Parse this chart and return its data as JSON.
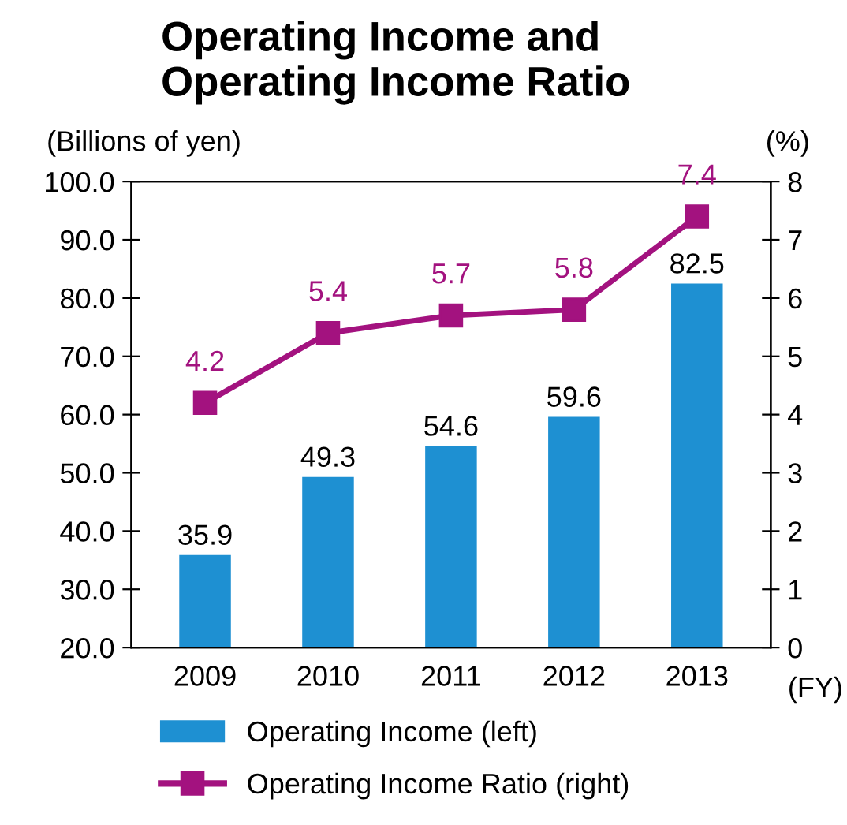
{
  "chart_data": {
    "type": "bar",
    "title": "Operating Income and\nOperating Income Ratio",
    "xlabel": "(FY)",
    "ylabel": "(Billions of yen)",
    "y2label": "(%)",
    "categories": [
      "2009",
      "2010",
      "2011",
      "2012",
      "2013"
    ],
    "series": [
      {
        "name": "Operating Income (left)",
        "color": "#1e90d2",
        "values": [
          35.9,
          49.3,
          54.6,
          59.6,
          82.5
        ]
      },
      {
        "name": "Operating Income Ratio (right)",
        "type": "line",
        "axis": "y2",
        "color": "#a3127f",
        "marker": "square",
        "values": [
          4.2,
          5.4,
          5.7,
          5.8,
          7.4
        ]
      }
    ],
    "ylim": [
      20,
      100
    ],
    "yticks": [
      {
        "value": 20,
        "label": "20.0"
      },
      {
        "value": 30,
        "label": "30.0"
      },
      {
        "value": 40,
        "label": "40.0"
      },
      {
        "value": 50,
        "label": "50.0"
      },
      {
        "value": 60,
        "label": "60.0"
      },
      {
        "value": 70,
        "label": "70.0"
      },
      {
        "value": 80,
        "label": "80.0"
      },
      {
        "value": 90,
        "label": "90.0"
      },
      {
        "value": 100,
        "label": "100.0"
      }
    ],
    "y2lim": [
      0,
      8
    ],
    "y2ticks": [
      0,
      1,
      2,
      3,
      4,
      5,
      6,
      7,
      8
    ],
    "data_labels": true,
    "grid": false,
    "legend": "bottom"
  }
}
